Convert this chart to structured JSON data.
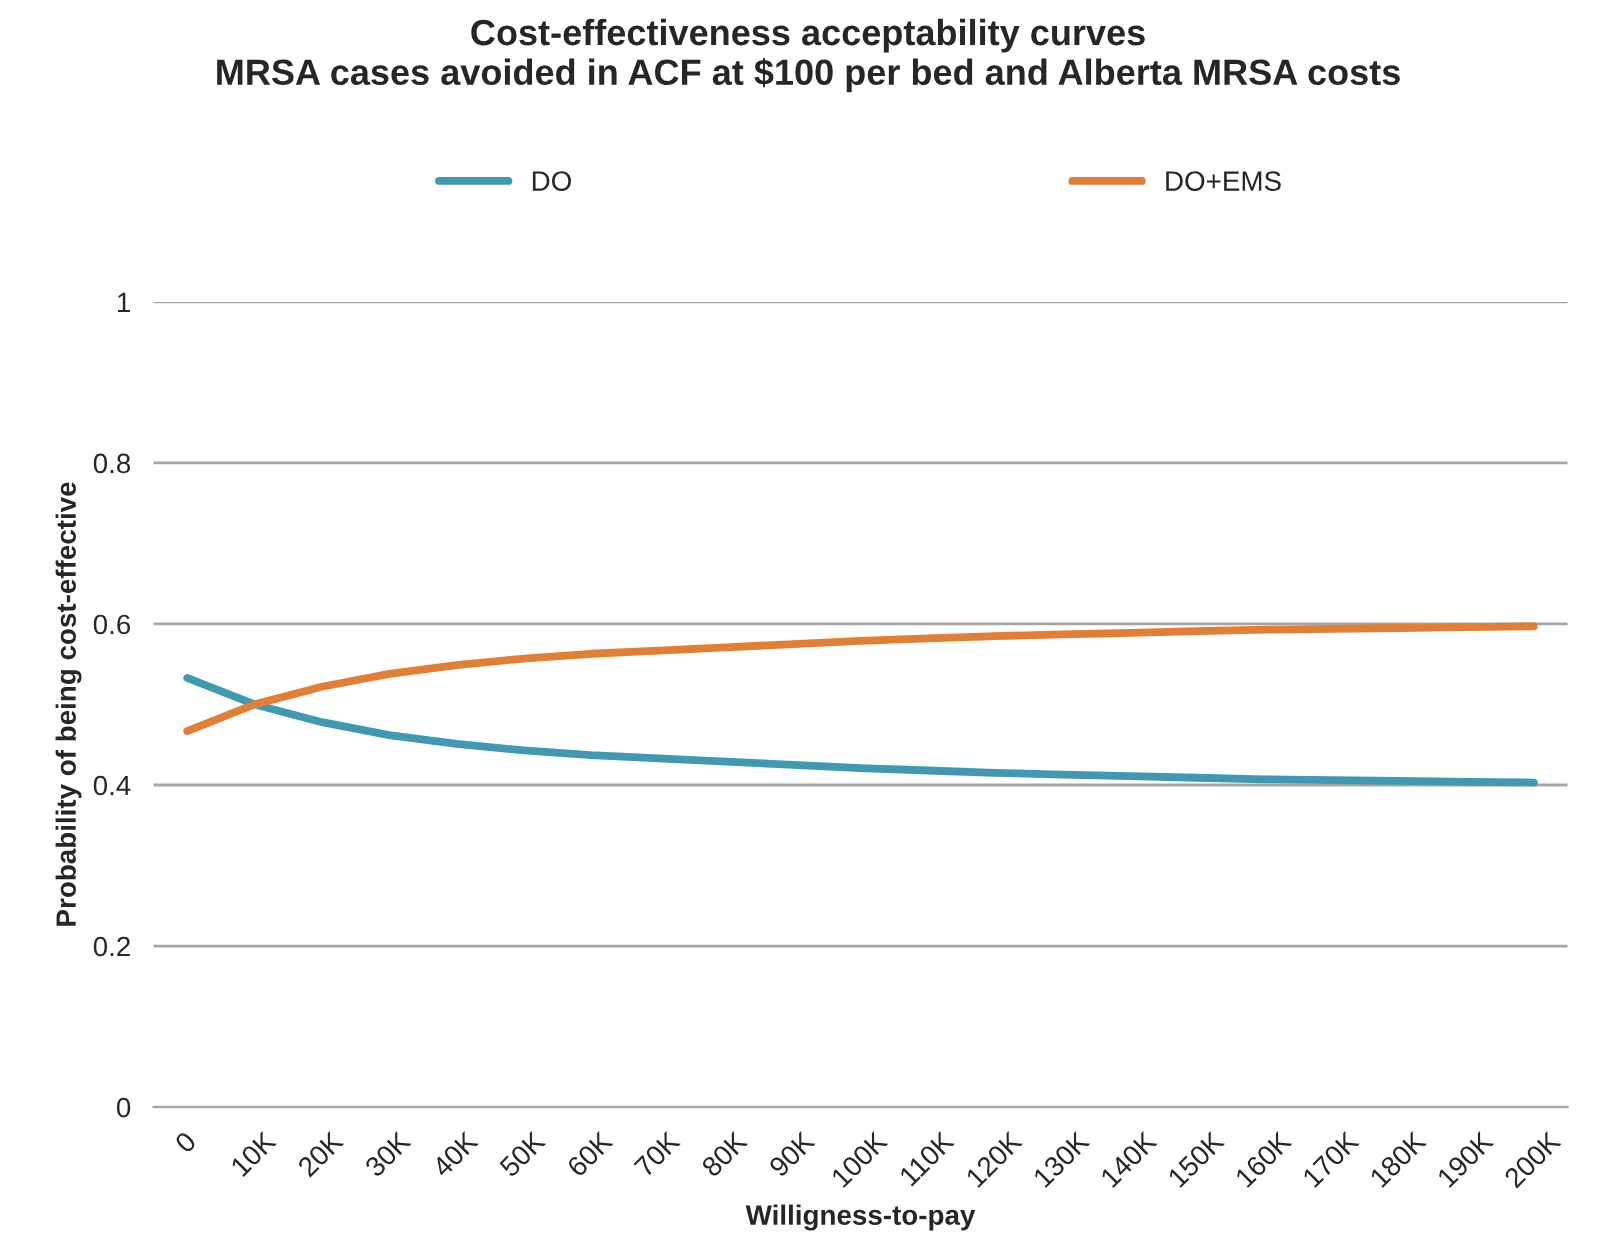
{
  "chart_data": {
    "type": "line",
    "title": "Cost-effectiveness acceptability curves\nMRSA cases avoided in ACF at $100 per bed and Alberta MRSA costs",
    "xlabel": "Willigness-to-pay",
    "ylabel": "Probability of being cost-effective",
    "categories": [
      "0",
      "10K",
      "20K",
      "30K",
      "40K",
      "50K",
      "60K",
      "70K",
      "80K",
      "90K",
      "100K",
      "110K",
      "120K",
      "130K",
      "140K",
      "150K",
      "160K",
      "170K",
      "180K",
      "190K",
      "200K"
    ],
    "series": [
      {
        "name": "DO",
        "color": "#4099b0",
        "values": [
          0.533,
          0.5,
          0.478,
          0.462,
          0.451,
          0.443,
          0.437,
          0.433,
          0.429,
          0.425,
          0.421,
          0.418,
          0.415,
          0.413,
          0.411,
          0.409,
          0.407,
          0.406,
          0.405,
          0.404,
          0.403
        ]
      },
      {
        "name": "DO+EMS",
        "color": "#e07f35",
        "values": [
          0.467,
          0.5,
          0.522,
          0.538,
          0.549,
          0.557,
          0.563,
          0.567,
          0.571,
          0.575,
          0.579,
          0.582,
          0.585,
          0.587,
          0.589,
          0.591,
          0.593,
          0.594,
          0.595,
          0.596,
          0.597
        ]
      }
    ],
    "ylim": [
      0,
      1
    ],
    "yticks": [
      0,
      0.2,
      0.4,
      0.6,
      0.8,
      1
    ],
    "grid": "y",
    "legend": "top",
    "marker": "none",
    "line_style": "solid"
  }
}
